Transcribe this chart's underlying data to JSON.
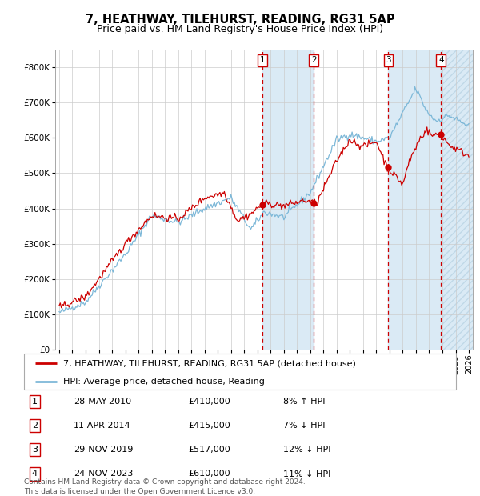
{
  "title": "7, HEATHWAY, TILEHURST, READING, RG31 5AP",
  "subtitle": "Price paid vs. HM Land Registry's House Price Index (HPI)",
  "ylim": [
    0,
    850000
  ],
  "yticks": [
    0,
    100000,
    200000,
    300000,
    400000,
    500000,
    600000,
    700000,
    800000
  ],
  "ytick_labels": [
    "£0",
    "£100K",
    "£200K",
    "£300K",
    "£400K",
    "£500K",
    "£600K",
    "£700K",
    "£800K"
  ],
  "x_start_year": 1995,
  "x_end_year": 2026,
  "hpi_color": "#7db8d8",
  "price_color": "#cc0000",
  "dot_color": "#cc0000",
  "shade_color": "#daeaf5",
  "hatch_color": "#c0d8e8",
  "grid_color": "#cccccc",
  "transactions": [
    {
      "label": "1",
      "date_str": "28-MAY-2010",
      "year": 2010.38,
      "price": 410000,
      "note": "8% ↑ HPI"
    },
    {
      "label": "2",
      "date_str": "11-APR-2014",
      "year": 2014.27,
      "price": 415000,
      "note": "7% ↓ HPI"
    },
    {
      "label": "3",
      "date_str": "29-NOV-2019",
      "year": 2019.91,
      "price": 517000,
      "note": "12% ↓ HPI"
    },
    {
      "label": "4",
      "date_str": "24-NOV-2023",
      "year": 2023.9,
      "price": 610000,
      "note": "11% ↓ HPI"
    }
  ],
  "legend_label_price": "7, HEATHWAY, TILEHURST, READING, RG31 5AP (detached house)",
  "legend_label_hpi": "HPI: Average price, detached house, Reading",
  "footer": "Contains HM Land Registry data © Crown copyright and database right 2024.\nThis data is licensed under the Open Government Licence v3.0.",
  "title_fontsize": 10.5,
  "subtitle_fontsize": 9,
  "tick_fontsize": 7.5,
  "legend_fontsize": 8,
  "table_fontsize": 8,
  "footer_fontsize": 6.5
}
